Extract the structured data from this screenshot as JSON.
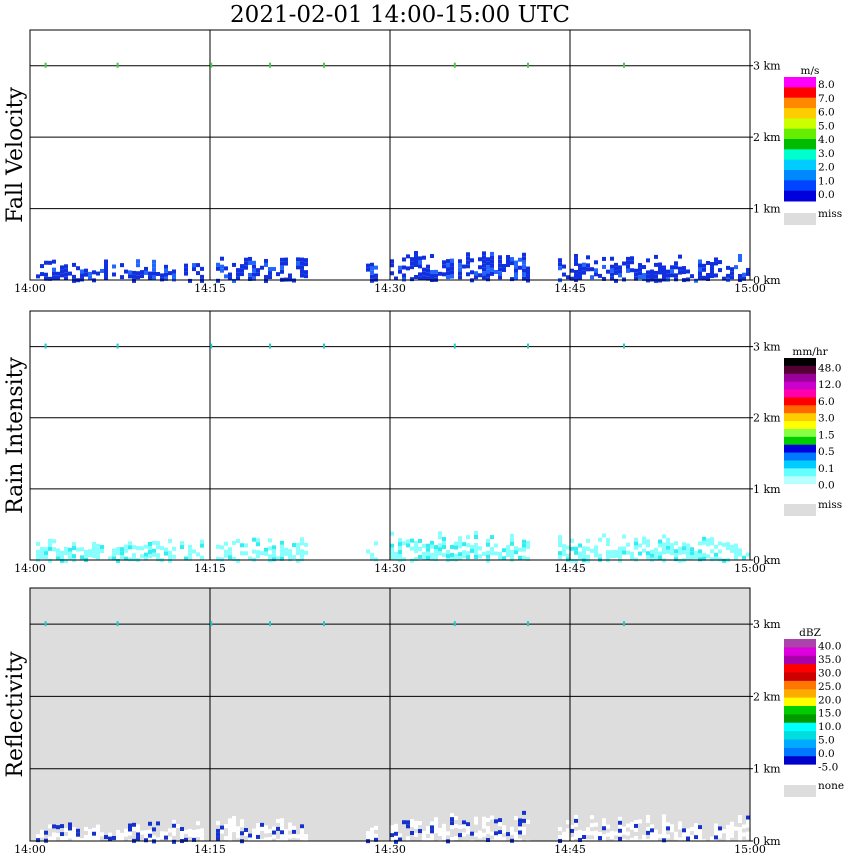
{
  "title": "2021-02-01   14:00-15:00 UTC",
  "chart_data": [
    {
      "type": "heatmap",
      "panel_label": "Fall Velocity",
      "x_tick_labels": [
        "14:00",
        "14:15",
        "14:30",
        "14:45",
        "15:00"
      ],
      "y_tick_labels": [
        "0 km",
        "1 km",
        "2 km",
        "3 km"
      ],
      "xlim_minutes": [
        0,
        60
      ],
      "ylim_km": [
        0,
        3.5
      ],
      "grid": true,
      "background": "#ffffff",
      "legend": {
        "unit": "m/s",
        "colors": [
          "#ff00ff",
          "#ff0000",
          "#ff8800",
          "#ffcc00",
          "#ccff00",
          "#66ee00",
          "#00bb00",
          "#00ffcc",
          "#00ccff",
          "#0088ff",
          "#0044ff",
          "#0000dd"
        ],
        "labels": [
          "8.0",
          "7.0",
          "6.0",
          "5.0",
          "4.0",
          "3.0",
          "2.0",
          "1.0",
          "0.0"
        ],
        "miss_label": "miss"
      },
      "echo_color": "#1030e0",
      "echo_alt_color": "#2266ff",
      "echo_blocks": [
        {
          "x0": 0.5,
          "x1": 14.5,
          "top_km": 0.3
        },
        {
          "x0": 15.5,
          "x1": 23.0,
          "top_km": 0.35
        },
        {
          "x0": 28.0,
          "x1": 29.0,
          "top_km": 0.3
        },
        {
          "x0": 30.0,
          "x1": 41.5,
          "top_km": 0.42
        },
        {
          "x0": 44.0,
          "x1": 60.0,
          "top_km": 0.38
        }
      ],
      "top_dots": [
        1.3,
        7.3,
        15.1,
        20.0,
        24.5,
        35.4,
        41.5,
        49.5
      ]
    },
    {
      "type": "heatmap",
      "panel_label": "Rain Intensity",
      "x_tick_labels": [
        "14:00",
        "14:15",
        "14:30",
        "14:45",
        "15:00"
      ],
      "y_tick_labels": [
        "0 km",
        "1 km",
        "2 km",
        "3 km"
      ],
      "xlim_minutes": [
        0,
        60
      ],
      "ylim_km": [
        0,
        3.5
      ],
      "grid": true,
      "background": "#ffffff",
      "legend": {
        "unit": "mm/hr",
        "colors": [
          "#000000",
          "#550033",
          "#990099",
          "#cc00cc",
          "#ff00aa",
          "#ff0000",
          "#ff6600",
          "#ffcc00",
          "#ffff00",
          "#88ff44",
          "#00cc00",
          "#0000dd",
          "#0077ff",
          "#00ccff",
          "#66ffff",
          "#b8ffff",
          "#ffffff"
        ],
        "labels": [
          "48.0",
          "12.0",
          "6.0",
          "3.0",
          "1.5",
          "0.5",
          "0.1",
          "0.0"
        ],
        "miss_label": "miss"
      },
      "echo_color": "#88ffff",
      "echo_alt_color": "#33eeee",
      "echo_blocks": [
        {
          "x0": 0.5,
          "x1": 14.5,
          "top_km": 0.3
        },
        {
          "x0": 15.5,
          "x1": 23.0,
          "top_km": 0.35
        },
        {
          "x0": 28.0,
          "x1": 29.0,
          "top_km": 0.3
        },
        {
          "x0": 30.0,
          "x1": 41.5,
          "top_km": 0.42
        },
        {
          "x0": 44.0,
          "x1": 60.0,
          "top_km": 0.38
        }
      ],
      "top_dots": [
        1.3,
        7.3,
        15.1,
        20.0,
        24.5,
        35.4,
        41.5,
        49.5
      ]
    },
    {
      "type": "heatmap",
      "panel_label": "Reflectivity",
      "x_tick_labels": [
        "14:00",
        "14:15",
        "14:30",
        "14:45",
        "15:00"
      ],
      "y_tick_labels": [
        "0 km",
        "1 km",
        "2 km",
        "3 km"
      ],
      "xlim_minutes": [
        0,
        60
      ],
      "ylim_km": [
        0,
        3.5
      ],
      "grid": true,
      "background": "#dddddd",
      "legend": {
        "unit": "dBZ",
        "colors": [
          "#aa44aa",
          "#dd00dd",
          "#aa00aa",
          "#ff0000",
          "#cc0000",
          "#ff7700",
          "#ffaa00",
          "#ffff00",
          "#00cc00",
          "#009900",
          "#00ffff",
          "#00dddd",
          "#00aaff",
          "#0077ff",
          "#0000cc",
          "#ffffff"
        ],
        "labels": [
          "40.0",
          "35.0",
          "30.0",
          "25.0",
          "20.0",
          "15.0",
          "10.0",
          "5.0",
          "0.0",
          "-5.0"
        ],
        "miss_label": "none"
      },
      "echo_color": "#ffffff",
      "echo_alt_color": "#1533cc",
      "echo_blocks": [
        {
          "x0": 0.5,
          "x1": 14.5,
          "top_km": 0.3
        },
        {
          "x0": 15.5,
          "x1": 23.0,
          "top_km": 0.35
        },
        {
          "x0": 28.0,
          "x1": 29.0,
          "top_km": 0.3
        },
        {
          "x0": 30.0,
          "x1": 41.5,
          "top_km": 0.42
        },
        {
          "x0": 44.0,
          "x1": 60.0,
          "top_km": 0.38
        }
      ],
      "top_dots": [
        1.3,
        7.3,
        15.1,
        20.0,
        24.5,
        35.4,
        41.5,
        49.5
      ]
    }
  ]
}
